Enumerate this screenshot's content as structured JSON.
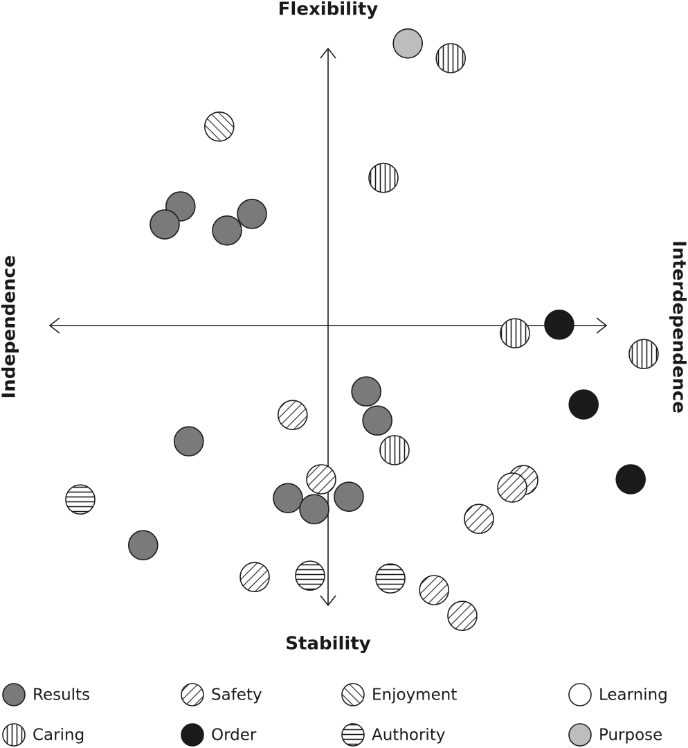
{
  "chart_data": {
    "type": "scatter",
    "x_label_left": "Independence",
    "x_label_right": "Interdependence",
    "y_label_top": "Flexibility",
    "y_label_bottom": "Stability",
    "xlim": [
      -12,
      12
    ],
    "ylim": [
      -12,
      12
    ],
    "series": [
      {
        "name": "Results",
        "color": "#7a7a7a",
        "pattern": "solid",
        "x": [
          -5.33,
          -5.9,
          -2.75,
          -3.65,
          1.38,
          1.78,
          -5.03,
          -1.45,
          -0.5,
          0.75,
          -6.68
        ],
        "y": [
          4.3,
          3.65,
          4.03,
          3.43,
          -2.38,
          -3.43,
          -4.18,
          -6.23,
          -6.63,
          -6.18,
          -7.93
        ]
      },
      {
        "name": "Safety",
        "color": "#ffffff",
        "pattern": "diagonal",
        "x": [
          -1.28,
          -0.25,
          7.05,
          6.65,
          5.45,
          -2.65,
          3.83,
          4.85
        ],
        "y": [
          -3.23,
          -5.55,
          -5.58,
          -5.85,
          -6.98,
          -9.08,
          -9.55,
          -10.48
        ]
      },
      {
        "name": "Enjoyment",
        "color": "#ffffff",
        "pattern": "back-diagonal",
        "x": [
          -3.93
        ],
        "y": [
          7.18
        ]
      },
      {
        "name": "Learning",
        "color": "#ffffff",
        "pattern": "solid",
        "x": [],
        "y": []
      },
      {
        "name": "Caring",
        "color": "#ffffff",
        "pattern": "vertical",
        "x": [
          4.43,
          2,
          6.75,
          11.4,
          2.4
        ],
        "y": [
          9.65,
          5.33,
          -0.28,
          -1.03,
          -4.5
        ]
      },
      {
        "name": "Order",
        "color": "#1a1a1a",
        "pattern": "solid",
        "x": [
          8.35,
          9.23,
          10.93
        ],
        "y": [
          0.03,
          -2.85,
          -5.55
        ]
      },
      {
        "name": "Authority",
        "color": "#ffffff",
        "pattern": "horizontal",
        "x": [
          -8.95,
          -0.65,
          2.25
        ],
        "y": [
          -6.28,
          -9.03,
          -9.13
        ]
      },
      {
        "name": "Purpose",
        "color": "#bdbdbd",
        "pattern": "solid",
        "x": [
          2.88
        ],
        "y": [
          10.18
        ]
      }
    ]
  }
}
